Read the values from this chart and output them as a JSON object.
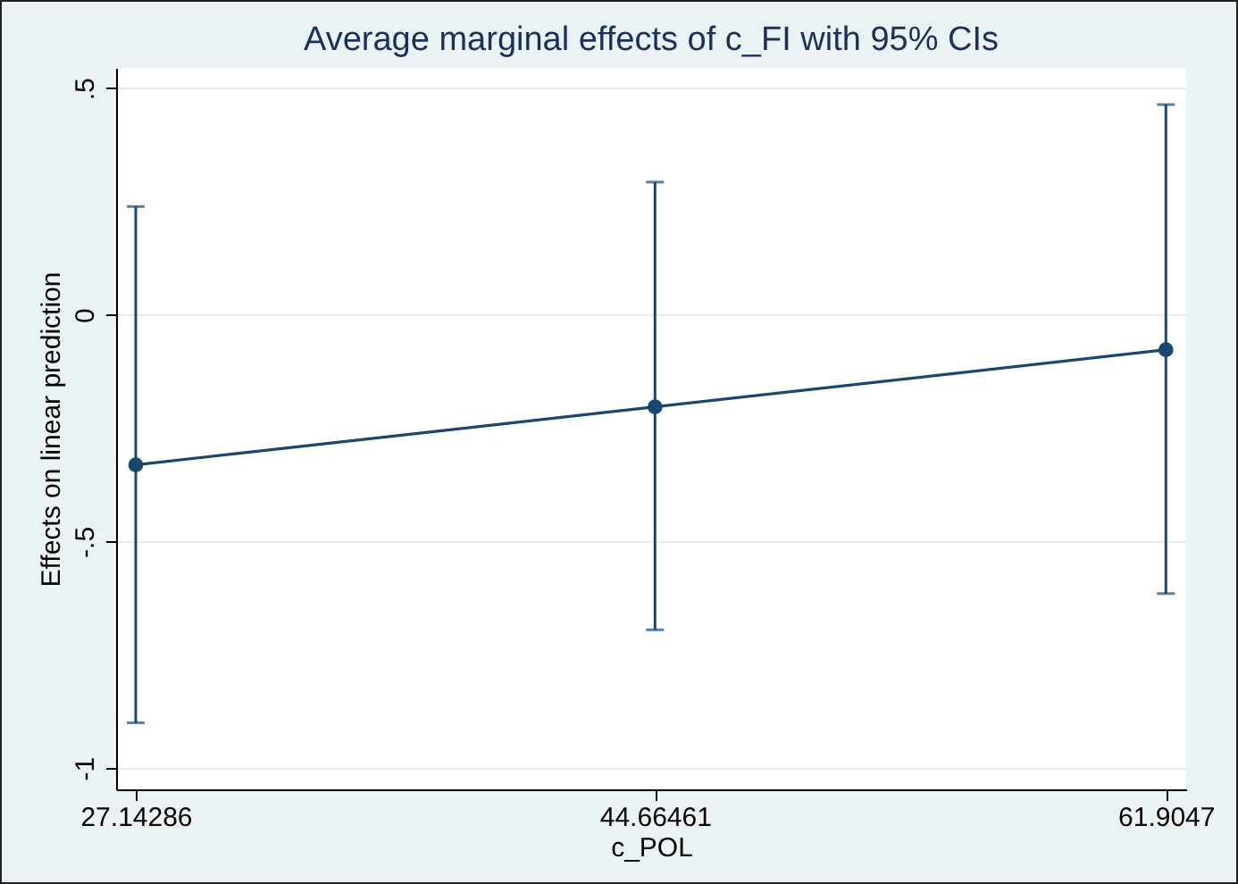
{
  "chart_data": {
    "type": "line",
    "title": "Average marginal effects of c_FI with 95% CIs",
    "xlabel": "c_POL",
    "ylabel": "Effects on linear prediction",
    "x": [
      27.14286,
      44.66461,
      61.9047
    ],
    "series": [
      {
        "color": "#1a476f",
        "values": [
          -0.331,
          -0.203,
          -0.077
        ],
        "errors": [
          [
            -0.9,
            0.239
          ],
          [
            -0.695,
            0.293
          ],
          [
            -0.615,
            0.464
          ]
        ]
      }
    ],
    "xlim": [
      26.48,
      62.59
    ],
    "xticks": [
      27.14286,
      44.66461,
      61.9047
    ],
    "ylim": [
      -1.047,
      0.545
    ],
    "yticks": [
      {
        "value": -1,
        "label": "-1"
      },
      {
        "value": -0.5,
        "label": "-.5"
      },
      {
        "value": 0,
        "label": "0"
      },
      {
        "value": 0.5,
        "label": ".5"
      }
    ],
    "grid": "y",
    "marker": "circle",
    "line_style": "solid"
  }
}
